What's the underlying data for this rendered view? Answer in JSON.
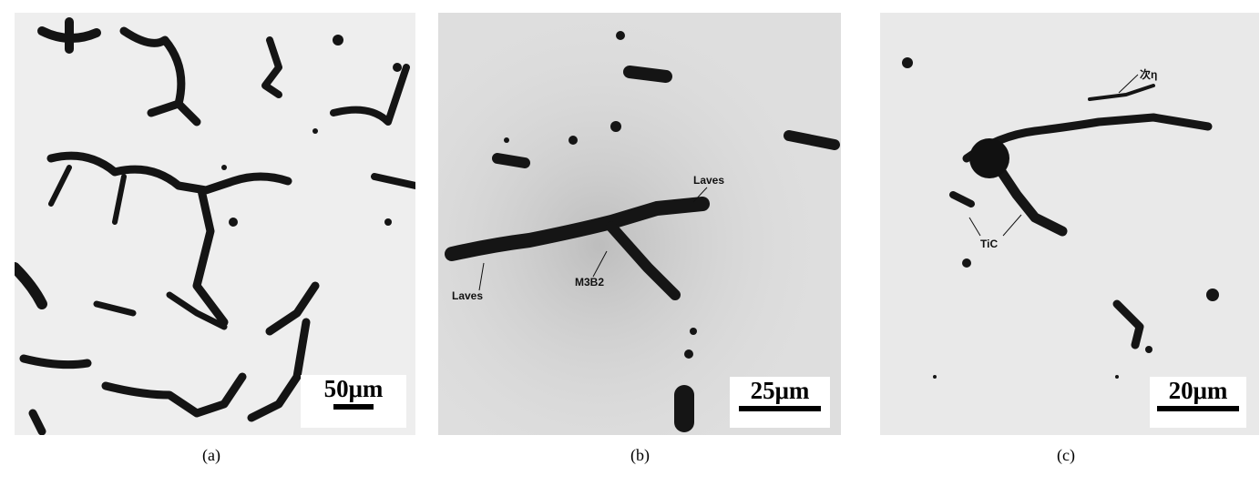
{
  "panels": [
    {
      "id": "a",
      "caption": "(a)",
      "scale_bar": "50μm",
      "labels": []
    },
    {
      "id": "b",
      "caption": "(b)",
      "scale_bar": "25μm",
      "labels": [
        "Laves",
        "M3B2",
        "Laves"
      ]
    },
    {
      "id": "c",
      "caption": "(c)",
      "scale_bar": "20μm",
      "labels": [
        "次η",
        "TiC"
      ]
    }
  ],
  "colors": {
    "background": "#ffffff",
    "phase": "#151515",
    "matrix_a": "#eeeeee",
    "matrix_b": "#dedede",
    "matrix_c": "#e9e9e9"
  }
}
